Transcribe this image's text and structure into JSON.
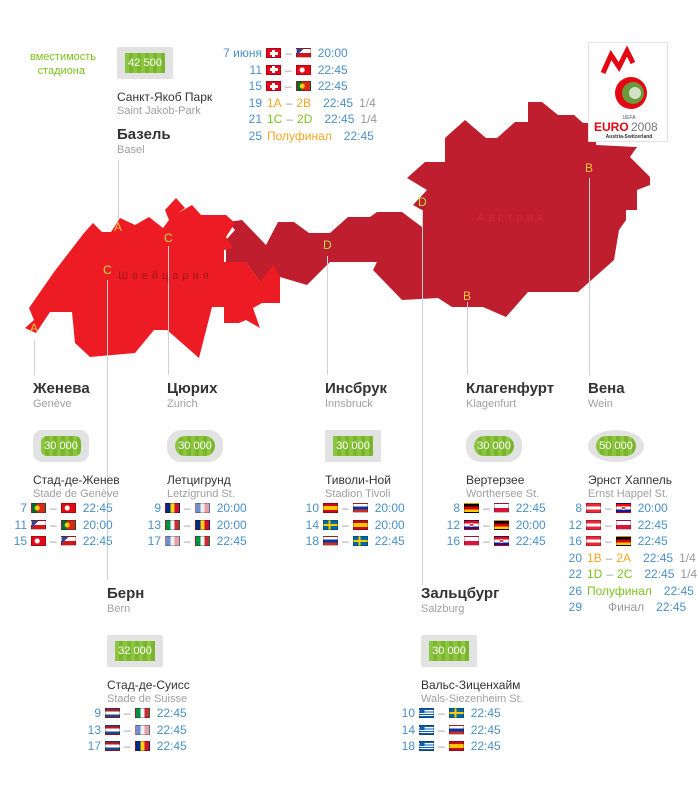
{
  "legend": {
    "capacity_label_1": "вместимость",
    "capacity_label_2": "стадиона"
  },
  "countries": {
    "switzerland": "Швейцария",
    "austria": "Австрия"
  },
  "colors": {
    "switzerland": "#ed1c24",
    "austria": "#be1e2d",
    "date_time": "#4a90c8",
    "group_yellow": "#f5a623",
    "group_green": "#7dc11e",
    "muted": "#999999"
  },
  "logo": {
    "text": "EURO2008",
    "uefa": "UEFA",
    "sub": "Austria-Switzerland"
  },
  "map_letters": [
    {
      "letter": "A",
      "color": "#f5c542",
      "city": "basel"
    },
    {
      "letter": "A",
      "color": "#f5c542",
      "city": "geneva"
    },
    {
      "letter": "C",
      "color": "#b5e04a",
      "city": "bern"
    },
    {
      "letter": "C",
      "color": "#b5e04a",
      "city": "zurich"
    },
    {
      "letter": "D",
      "color": "#b5e04a",
      "city": "innsbruck"
    },
    {
      "letter": "D",
      "color": "#b5e04a",
      "city": "salzburg"
    },
    {
      "letter": "B",
      "color": "#f5c542",
      "city": "klagenfurt"
    },
    {
      "letter": "B",
      "color": "#f5c542",
      "city": "vienna"
    }
  ],
  "venues": {
    "basel": {
      "title": "Базель",
      "sub": "Basel",
      "capacity": "42 500",
      "badge": "square",
      "stadium": "Санкт-Якоб Парк",
      "stadium_latin": "Saint Jakob-Park",
      "matches": [
        {
          "day": "7 июня",
          "home": "ch",
          "away": "cz",
          "time": "20:00"
        },
        {
          "day": "11",
          "home": "ch",
          "away": "tr",
          "time": "22:45"
        },
        {
          "day": "15",
          "home": "ch",
          "away": "pt",
          "time": "22:45"
        },
        {
          "day": "19",
          "s1": "1A",
          "s2": "2B",
          "scolor": "#f5a623",
          "time": "22:45",
          "round": "1/4"
        },
        {
          "day": "21",
          "s1": "1C",
          "s2": "2D",
          "scolor": "#7dc11e",
          "time": "22:45",
          "round": "1/4"
        },
        {
          "day": "25",
          "label": "Полуфинал",
          "scolor": "#f5a623",
          "time": "22:45"
        }
      ]
    },
    "geneva": {
      "title": "Женева",
      "sub": "Genève",
      "capacity": "30 000",
      "badge": "rounded",
      "stadium": "Стад-де-Женев",
      "stadium_latin": "Stade de Genève",
      "matches": [
        {
          "day": "7",
          "home": "pt",
          "away": "tr",
          "time": "22:45"
        },
        {
          "day": "11",
          "home": "cz",
          "away": "pt",
          "time": "20:00"
        },
        {
          "day": "15",
          "home": "tr",
          "away": "cz",
          "time": "22:45"
        }
      ]
    },
    "zurich": {
      "title": "Цюрих",
      "sub": "Zurich",
      "capacity": "30 000",
      "badge": "pill",
      "stadium": "Летцигрунд",
      "stadium_latin": "Letzigrund St.",
      "matches": [
        {
          "day": "9",
          "home": "ro",
          "away": "fr",
          "time": "20:00"
        },
        {
          "day": "13",
          "home": "it",
          "away": "ro",
          "time": "20:00"
        },
        {
          "day": "17",
          "home": "fr",
          "away": "it",
          "time": "22:45"
        }
      ]
    },
    "innsbruck": {
      "title": "Инсбрук",
      "sub": "Innsbruck",
      "capacity": "30 000",
      "badge": "square",
      "stadium": "Тиволи-Ной",
      "stadium_latin": "Stadion Tivoli",
      "matches": [
        {
          "day": "10",
          "home": "es",
          "away": "ru",
          "time": "20:00"
        },
        {
          "day": "14",
          "home": "se",
          "away": "es",
          "time": "20:00"
        },
        {
          "day": "18",
          "home": "ru",
          "away": "se",
          "time": "22:45"
        }
      ]
    },
    "klagenfurt": {
      "title": "Клагенфурт",
      "sub": "Klagenfurt",
      "capacity": "30 000",
      "badge": "pill",
      "stadium": "Вертерзее",
      "stadium_latin": "Worthersee St.",
      "matches": [
        {
          "day": "8",
          "home": "de",
          "away": "pl",
          "time": "22:45"
        },
        {
          "day": "12",
          "home": "hr",
          "away": "de",
          "time": "20:00"
        },
        {
          "day": "16",
          "home": "pl",
          "away": "hr",
          "time": "22:45"
        }
      ]
    },
    "vienna": {
      "title": "Вена",
      "sub": "Wein",
      "capacity": "50 000",
      "badge": "ellipse",
      "stadium": "Эрнст Хаппель",
      "stadium_latin": "Ernst Happel St.",
      "matches": [
        {
          "day": "8",
          "home": "at",
          "away": "hr",
          "time": "20:00"
        },
        {
          "day": "12",
          "home": "at",
          "away": "pl",
          "time": "22:45"
        },
        {
          "day": "16",
          "home": "at",
          "away": "de",
          "time": "22:45"
        },
        {
          "day": "20",
          "s1": "1B",
          "s2": "2A",
          "scolor": "#f5a623",
          "time": "22:45",
          "round": "1/4"
        },
        {
          "day": "22",
          "s1": "1D",
          "s2": "2C",
          "scolor": "#7dc11e",
          "time": "22:45",
          "round": "1/4"
        },
        {
          "day": "26",
          "label": "Полуфинал",
          "scolor": "#7dc11e",
          "time": "22:45"
        },
        {
          "day": "29",
          "label": "Финал",
          "scolor": "#999999",
          "time": "22:45"
        }
      ]
    },
    "bern": {
      "title": "Берн",
      "sub": "Bern",
      "capacity": "32 000",
      "badge": "square",
      "stadium": "Стад-де-Суисс",
      "stadium_latin": "Stade de Suisse",
      "matches": [
        {
          "day": "9",
          "home": "nl",
          "away": "it",
          "time": "22:45"
        },
        {
          "day": "13",
          "home": "nl",
          "away": "fr",
          "time": "22:45"
        },
        {
          "day": "17",
          "home": "nl",
          "away": "ro",
          "time": "22:45"
        }
      ]
    },
    "salzburg": {
      "title": "Зальцбург",
      "sub": "Salzburg",
      "capacity": "30 000",
      "badge": "square",
      "stadium": "Вальс-Зиценхайм",
      "stadium_latin": "Wals-Siezenheim St.",
      "matches": [
        {
          "day": "10",
          "home": "gr",
          "away": "se",
          "time": "22:45"
        },
        {
          "day": "14",
          "home": "gr",
          "away": "ru",
          "time": "22:45"
        },
        {
          "day": "18",
          "home": "gr",
          "away": "es",
          "time": "22:45"
        }
      ]
    }
  }
}
